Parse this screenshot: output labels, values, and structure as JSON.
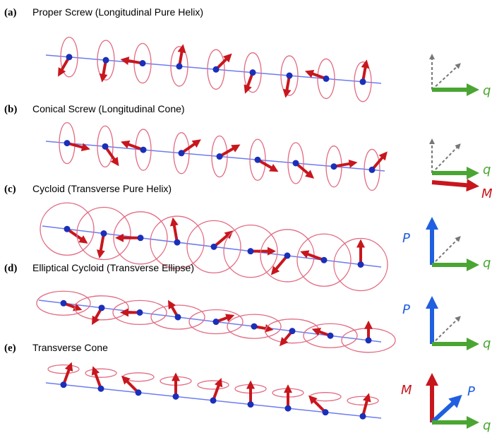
{
  "panels": [
    {
      "label": "(a)",
      "title": "Proper Screw (Longitudinal Pure Helix)",
      "axes": [
        "q"
      ]
    },
    {
      "label": "(b)",
      "title": "Conical Screw (Longitudinal Cone)",
      "axes": [
        "q",
        "M"
      ]
    },
    {
      "label": "(c)",
      "title": "Cycloid (Transverse Pure Helix)",
      "axes": [
        "P",
        "q"
      ]
    },
    {
      "label": "(d)",
      "title": "Elliptical Cycloid (Transverse Ellipse)",
      "axes": [
        "P",
        "q"
      ]
    },
    {
      "label": "(e)",
      "title": "Transverse Cone",
      "axes": [
        "M",
        "P",
        "q"
      ]
    }
  ]
}
